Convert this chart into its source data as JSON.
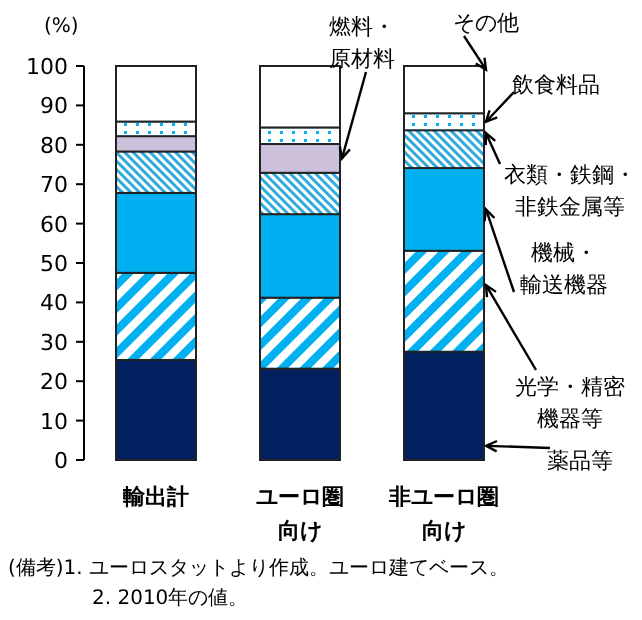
{
  "chart_data": {
    "type": "bar",
    "stacked": true,
    "ylabel": "(%)",
    "categories": [
      "輸出計",
      "ユーロ圏向け",
      "非ユーロ圏向け"
    ],
    "series": [
      {
        "name": "薬品等",
        "color": "#002060",
        "values": [
          25.4,
          23.2,
          27.5
        ]
      },
      {
        "name": "光学・精密機器等",
        "color": "#00b0f0",
        "values": [
          22.1,
          18.0,
          25.6
        ]
      },
      {
        "name": "機械・輸送機器",
        "color": "#00b0f0",
        "values": [
          20.3,
          21.2,
          21.0
        ]
      },
      {
        "name": "衣類・鉄鋼・非鉄金属等",
        "color": "#33aadd",
        "values": [
          10.5,
          10.5,
          9.6
        ]
      },
      {
        "name": "燃料・原材料",
        "color": "#ccc0da",
        "values": [
          3.9,
          7.3,
          null
        ]
      },
      {
        "name": "飲食料品",
        "color": "#00b0f0",
        "values": [
          3.7,
          4.2,
          4.3
        ]
      },
      {
        "name": "その他",
        "color": "#ffffff",
        "values": [
          14.1,
          15.6,
          12.0
        ]
      }
    ],
    "ylim": [
      0,
      100
    ],
    "yticks": [
      0,
      10,
      20,
      30,
      40,
      50,
      60,
      70,
      80,
      90,
      100
    ],
    "annotations": [
      "(備考)1. ユーロスタットより作成。ユーロ建てベース。",
      "2. 2010年の値。"
    ]
  }
}
